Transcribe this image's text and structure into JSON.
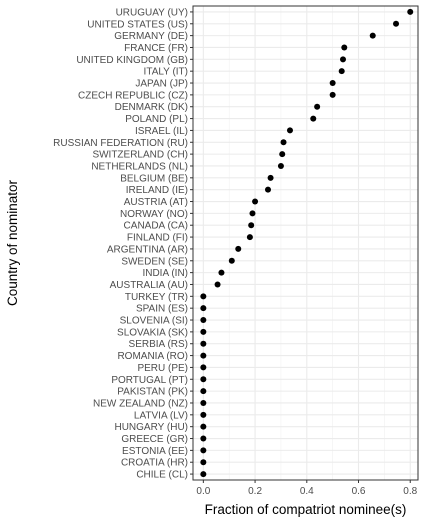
{
  "chart_data": {
    "type": "scatter",
    "title": "",
    "xlabel": "Fraction of compatriot nominee(s)",
    "ylabel": "Country of nominator",
    "xlim": [
      -0.04,
      0.83
    ],
    "x_ticks": [
      0.0,
      0.2,
      0.4,
      0.6,
      0.8
    ],
    "x_tick_labels": [
      "0.0",
      "0.2",
      "0.4",
      "0.6",
      "0.8"
    ],
    "grid": true,
    "legend": "none",
    "point_color": "#000000",
    "categories": [
      "URUGUAY (UY)",
      "UNITED STATES (US)",
      "GERMANY (DE)",
      "FRANCE (FR)",
      "UNITED KINGDOM (GB)",
      "ITALY (IT)",
      "JAPAN (JP)",
      "CZECH REPUBLIC (CZ)",
      "DENMARK (DK)",
      "POLAND (PL)",
      "ISRAEL (IL)",
      "RUSSIAN FEDERATION (RU)",
      "SWITZERLAND (CH)",
      "NETHERLANDS (NL)",
      "BELGIUM (BE)",
      "IRELAND (IE)",
      "AUSTRIA (AT)",
      "NORWAY (NO)",
      "CANADA (CA)",
      "FINLAND (FI)",
      "ARGENTINA (AR)",
      "SWEDEN (SE)",
      "INDIA (IN)",
      "AUSTRALIA (AU)",
      "TURKEY (TR)",
      "SPAIN (ES)",
      "SLOVENIA (SI)",
      "SLOVAKIA (SK)",
      "SERBIA (RS)",
      "ROMANIA (RO)",
      "PERU (PE)",
      "PORTUGAL (PT)",
      "PAKISTAN (PK)",
      "NEW ZEALAND (NZ)",
      "LATVIA (LV)",
      "HUNGARY (HU)",
      "GREECE (GR)",
      "ESTONIA (EE)",
      "CROATIA (HR)",
      "CHILE (CL)"
    ],
    "values": [
      0.8,
      0.745,
      0.655,
      0.545,
      0.54,
      0.535,
      0.5,
      0.5,
      0.44,
      0.425,
      0.335,
      0.31,
      0.305,
      0.3,
      0.26,
      0.25,
      0.2,
      0.19,
      0.185,
      0.18,
      0.135,
      0.11,
      0.07,
      0.055,
      0.0,
      0.0,
      0.0,
      0.0,
      0.0,
      0.0,
      0.0,
      0.0,
      0.0,
      0.0,
      0.0,
      0.0,
      0.0,
      0.0,
      0.0,
      0.0
    ]
  }
}
